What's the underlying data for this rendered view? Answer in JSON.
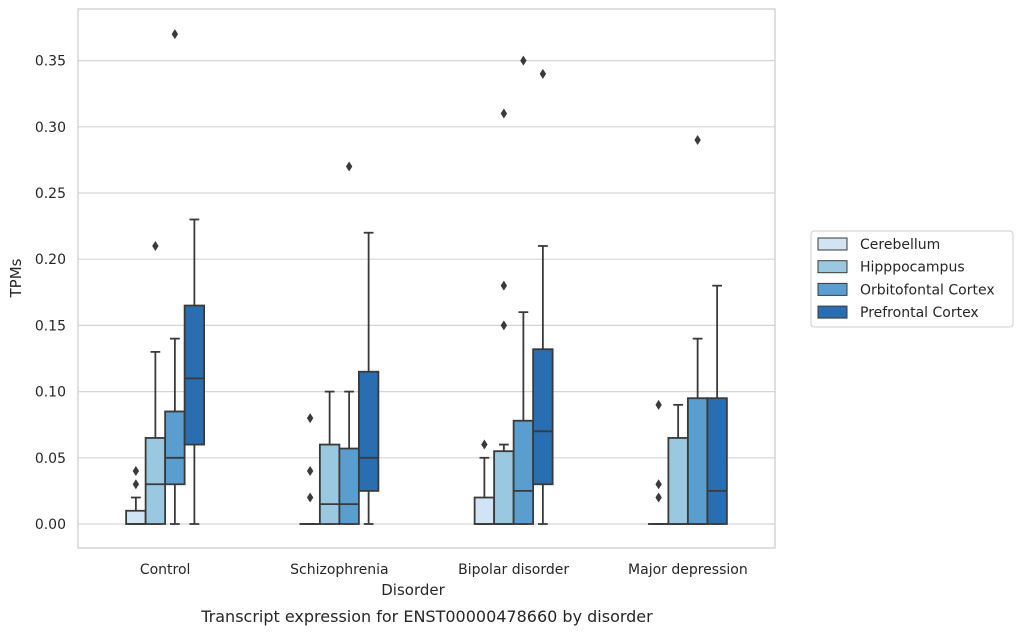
{
  "caption": "Transcript expression for ENST00000478660 by disorder",
  "chart_data": {
    "type": "box",
    "xlabel": "Disorder",
    "ylabel": "TPMs",
    "ylim": [
      -0.018,
      0.388
    ],
    "yticks": [
      "0.00",
      "0.05",
      "0.10",
      "0.15",
      "0.20",
      "0.25",
      "0.30",
      "0.35"
    ],
    "grid": "horizontal",
    "legend_position": "right",
    "categories": [
      "Control",
      "Schizophrenia",
      "Bipolar disorder",
      "Major depression"
    ],
    "series": [
      {
        "name": "Cerebellum",
        "color": "#d2e3f3",
        "boxes": [
          {
            "low": 0.0,
            "q1": 0.0,
            "median": 0.0,
            "q3": 0.01,
            "high": 0.02,
            "outliers": [
              0.03,
              0.04
            ]
          },
          {
            "low": 0.0,
            "q1": 0.0,
            "median": 0.0,
            "q3": 0.0,
            "high": 0.0,
            "outliers": [
              0.02,
              0.04,
              0.08
            ]
          },
          {
            "low": 0.0,
            "q1": 0.0,
            "median": 0.0,
            "q3": 0.02,
            "high": 0.05,
            "outliers": [
              0.06
            ]
          },
          {
            "low": 0.0,
            "q1": 0.0,
            "median": 0.0,
            "q3": 0.0,
            "high": 0.0,
            "outliers": [
              0.02,
              0.03,
              0.09
            ]
          }
        ]
      },
      {
        "name": "Hipppocampus",
        "color": "#9ac8e0",
        "boxes": [
          {
            "low": 0.0,
            "q1": 0.0,
            "median": 0.03,
            "q3": 0.065,
            "high": 0.13,
            "outliers": [
              0.21
            ]
          },
          {
            "low": 0.0,
            "q1": 0.0,
            "median": 0.015,
            "q3": 0.06,
            "high": 0.1,
            "outliers": []
          },
          {
            "low": 0.0,
            "q1": 0.0,
            "median": 0.0,
            "q3": 0.055,
            "high": 0.06,
            "outliers": [
              0.15,
              0.18,
              0.31
            ]
          },
          {
            "low": 0.0,
            "q1": 0.0,
            "median": 0.0,
            "q3": 0.065,
            "high": 0.09,
            "outliers": []
          }
        ]
      },
      {
        "name": "Orbitofontal Cortex",
        "color": "#5a9ecf",
        "boxes": [
          {
            "low": 0.0,
            "q1": 0.03,
            "median": 0.05,
            "q3": 0.085,
            "high": 0.14,
            "outliers": [
              0.37
            ]
          },
          {
            "low": 0.0,
            "q1": 0.0,
            "median": 0.015,
            "q3": 0.057,
            "high": 0.1,
            "outliers": [
              0.27
            ]
          },
          {
            "low": 0.0,
            "q1": 0.0,
            "median": 0.025,
            "q3": 0.078,
            "high": 0.16,
            "outliers": [
              0.35
            ]
          },
          {
            "low": 0.0,
            "q1": 0.0,
            "median": 0.0,
            "q3": 0.095,
            "high": 0.14,
            "outliers": [
              0.29
            ]
          }
        ]
      },
      {
        "name": "Prefrontal Cortex",
        "color": "#2a6eb2",
        "boxes": [
          {
            "low": 0.0,
            "q1": 0.06,
            "median": 0.11,
            "q3": 0.165,
            "high": 0.23,
            "outliers": []
          },
          {
            "low": 0.0,
            "q1": 0.025,
            "median": 0.05,
            "q3": 0.115,
            "high": 0.22,
            "outliers": []
          },
          {
            "low": 0.0,
            "q1": 0.03,
            "median": 0.07,
            "q3": 0.132,
            "high": 0.21,
            "outliers": [
              0.34
            ]
          },
          {
            "low": 0.0,
            "q1": 0.0,
            "median": 0.025,
            "q3": 0.095,
            "high": 0.18,
            "outliers": []
          }
        ]
      }
    ]
  }
}
